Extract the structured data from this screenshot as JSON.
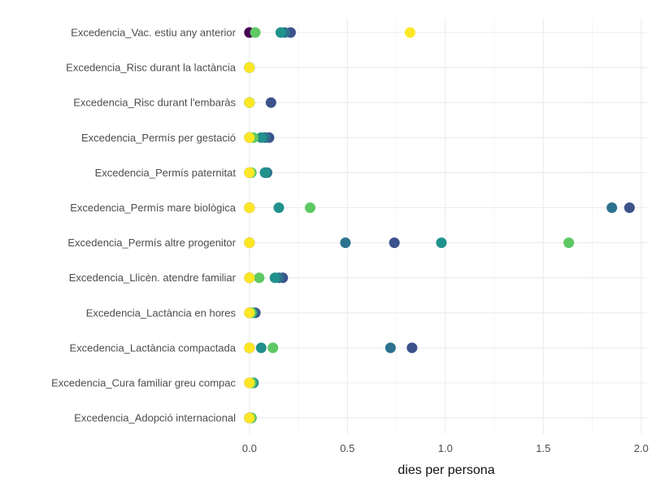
{
  "chart_data": {
    "type": "scatter",
    "xlabel": "dies per persona",
    "ylabel": "",
    "xlim": [
      -0.02,
      2.03
    ],
    "x_ticks": [
      0.0,
      0.5,
      1.0,
      1.5,
      2.0
    ],
    "x_tick_labels": [
      "0.0",
      "0.5",
      "1.0",
      "1.5",
      "2.0"
    ],
    "grid": true,
    "legend": "none",
    "categories": [
      "Excedencia_Vac. estiu any anterior",
      "Excedencia_Risc durant la lactància",
      "Excedencia_Risc durant l'embaràs",
      "Excedencia_Permís per gestació",
      "Excedencia_Permís paternitat",
      "Excedencia_Permís mare biològica",
      "Excedencia_Permís altre progenitor",
      "Excedencia_Llicèn. atendre familiar",
      "Excedencia_Lactància en hores",
      "Excedencia_Lactància compactada",
      "Excedencia_Cura familiar greu compac",
      "Excedencia_Adopció internacional"
    ],
    "series": [
      {
        "color": "#440154",
        "values": [
          0.0,
          0.0,
          0.0,
          0.0,
          0.0,
          0.0,
          0.0,
          0.0,
          0.0,
          0.0,
          0.0,
          0.0
        ]
      },
      {
        "color": "#3b528b",
        "values": [
          0.21,
          0.0,
          0.11,
          0.1,
          0.08,
          1.94,
          0.74,
          0.17,
          0.03,
          0.83,
          0.02,
          0.0
        ]
      },
      {
        "color": "#2c728e",
        "values": [
          0.18,
          0.0,
          0.0,
          0.08,
          0.09,
          1.85,
          0.49,
          0.15,
          0.02,
          0.72,
          0.02,
          0.01
        ]
      },
      {
        "color": "#21918c",
        "values": [
          0.16,
          0.0,
          0.0,
          0.06,
          0.08,
          0.15,
          0.98,
          0.13,
          0.01,
          0.06,
          0.02,
          0.01
        ]
      },
      {
        "color": "#5ec962",
        "values": [
          0.03,
          0.0,
          0.0,
          0.02,
          0.01,
          0.31,
          1.63,
          0.05,
          0.01,
          0.12,
          0.01,
          0.01
        ]
      },
      {
        "color": "#fde725",
        "values": [
          0.82,
          0.0,
          0.0,
          0.0,
          0.0,
          0.0,
          0.0,
          0.0,
          0.0,
          0.0,
          0.0,
          0.0
        ]
      }
    ],
    "colors": {
      "background": "#ffffff",
      "grid": "#ebebeb",
      "axis_text": "#4d4d4d",
      "axis_title": "#111111"
    }
  }
}
